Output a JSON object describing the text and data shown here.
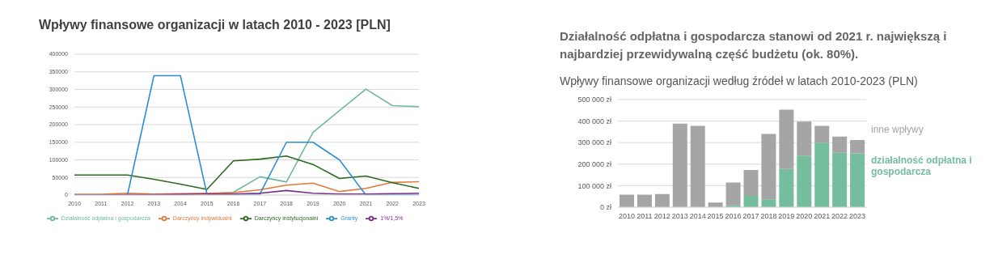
{
  "chart_data": [
    {
      "type": "line",
      "title": "Wpływy finansowe organizacji w latach 2010 - 2023 [PLN]",
      "categories": [
        "2010",
        "2011",
        "2012",
        "2013",
        "2014",
        "2015",
        "2016",
        "2017",
        "2018",
        "2019",
        "2020",
        "2021",
        "2022",
        "2023"
      ],
      "series": [
        {
          "name": "Działalność odpłatna i gospodarcza",
          "color": "#70b89f",
          "values": [
            null,
            null,
            null,
            null,
            null,
            3000,
            8000,
            52000,
            37000,
            178000,
            240000,
            301000,
            254000,
            251000
          ]
        },
        {
          "name": "Darczyńcy indywidualni",
          "color": "#e07a3c",
          "values": [
            2000,
            2000,
            5000,
            3000,
            4000,
            5000,
            7000,
            15000,
            28000,
            34000,
            10000,
            19000,
            36000,
            38000
          ]
        },
        {
          "name": "Darczyńcy instytucjonalni",
          "color": "#2b6a1f",
          "values": [
            57000,
            57000,
            57000,
            45000,
            31000,
            16000,
            97000,
            102000,
            111000,
            87000,
            47000,
            54000,
            35000,
            19000
          ]
        },
        {
          "name": "Granty",
          "color": "#2e8fd0",
          "values": [
            0,
            0,
            0,
            339000,
            339000,
            3000,
            3000,
            3000,
            150000,
            150000,
            100000,
            0,
            0,
            0
          ]
        },
        {
          "name": "1%/1,5%",
          "color": "#7b2d8b",
          "values": [
            0,
            0,
            1000,
            1000,
            2000,
            3000,
            3000,
            5000,
            13000,
            5000,
            3000,
            3000,
            4000,
            5000
          ]
        }
      ],
      "ylim": [
        0,
        400000
      ],
      "yticks": [
        0,
        50000,
        100000,
        150000,
        200000,
        250000,
        300000,
        350000,
        400000
      ],
      "grid": "y",
      "legend": "bottom",
      "marker": "none",
      "line_style": "solid"
    },
    {
      "type": "bar",
      "title": "Działalność odpłatna i gospodarcza stanowi od 2021 r. największą i najbardziej przewidywalną część budżetu (ok. 80%).",
      "subtitle": "Wpływy finansowe organizacji według źródeł w latach 2010-2023 (PLN)",
      "categories": [
        "2010",
        "2011",
        "2012",
        "2013",
        "2014",
        "2015",
        "2016",
        "2017",
        "2018",
        "2019",
        "2020",
        "2021",
        "2022",
        "2023"
      ],
      "stacked": true,
      "series": [
        {
          "name": "działalność odpłatna i gospodarcza",
          "color": "#74bd9d",
          "values": [
            0,
            0,
            0,
            0,
            0,
            0,
            8000,
            53000,
            37000,
            178000,
            240000,
            300000,
            253000,
            250000
          ]
        },
        {
          "name": "inne wpływy",
          "color": "#a5a5a5",
          "values": [
            58000,
            58000,
            61000,
            388000,
            378000,
            22000,
            107000,
            120000,
            303000,
            275000,
            158000,
            78000,
            75000,
            62000
          ]
        }
      ],
      "ylim": [
        0,
        500000
      ],
      "yticks": [
        {
          "value": 0,
          "label": "0 zł"
        },
        {
          "value": 100000,
          "label": "100 000 zł"
        },
        {
          "value": 200000,
          "label": "200 000 zł"
        },
        {
          "value": 300000,
          "label": "300 000 zł"
        },
        {
          "value": 400000,
          "label": "400 000 zł"
        },
        {
          "value": 500000,
          "label": "500 000 zł"
        }
      ],
      "grid": "y",
      "legend": "right"
    }
  ]
}
